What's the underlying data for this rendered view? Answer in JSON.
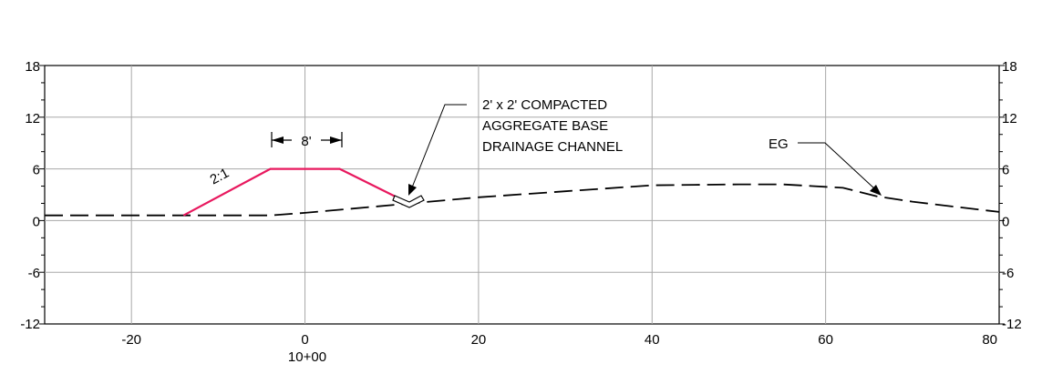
{
  "chart_data": {
    "type": "line",
    "title": "",
    "xlabel": "",
    "ylabel": "",
    "xlim": [
      -30,
      80
    ],
    "ylim": [
      -12,
      18
    ],
    "grid": true,
    "x_ticks": [
      {
        "value": -20,
        "label": "-20"
      },
      {
        "value": 0,
        "label": "0"
      },
      {
        "value": 20,
        "label": "20"
      },
      {
        "value": 40,
        "label": "40"
      },
      {
        "value": 60,
        "label": "60"
      },
      {
        "value": 80,
        "label": "80"
      }
    ],
    "station_label": "10+00",
    "y_ticks": [
      {
        "value": 18,
        "label": "18"
      },
      {
        "value": 12,
        "label": "12"
      },
      {
        "value": 6,
        "label": "6"
      },
      {
        "value": 0,
        "label": "0"
      },
      {
        "value": -6,
        "label": "-6"
      },
      {
        "value": -12,
        "label": "-12"
      }
    ],
    "series": [
      {
        "style": "dashed",
        "color": "#000000",
        "points": [
          [
            -30,
            0.6
          ],
          [
            -14,
            0.6
          ],
          [
            -4,
            0.6
          ],
          [
            0,
            0.9
          ],
          [
            10,
            1.8
          ],
          [
            20,
            2.7
          ],
          [
            30,
            3.4
          ],
          [
            40,
            4.1
          ],
          [
            50,
            4.2
          ],
          [
            55,
            4.2
          ],
          [
            62,
            3.8
          ],
          [
            66,
            2.8
          ],
          [
            70,
            2.2
          ],
          [
            75,
            1.6
          ],
          [
            80,
            1.0
          ]
        ]
      },
      {
        "style": "solid",
        "color": "#e8185e",
        "points": [
          [
            -14,
            0.6
          ],
          [
            -4,
            6
          ],
          [
            4,
            6
          ],
          [
            12,
            2.0
          ]
        ]
      }
    ],
    "annotations": {
      "slope_label": "2:1",
      "width_dim": "8'",
      "channel_note": [
        "2' x 2' COMPACTED",
        "AGGREGATE BASE",
        "DRAINAGE CHANNEL"
      ],
      "eg_label": "EG"
    }
  }
}
